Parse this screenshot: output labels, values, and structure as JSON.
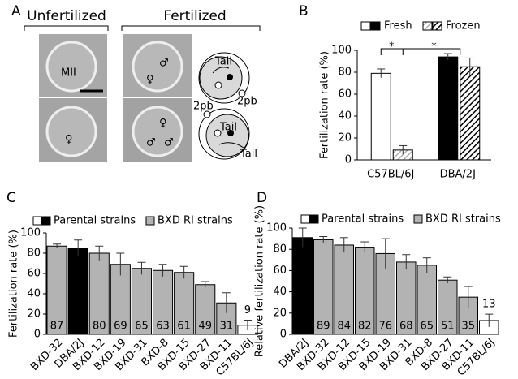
{
  "panel_a": {
    "label": "A",
    "groups": [
      "Unfertilized",
      "Fertilized"
    ],
    "image_labels": [
      "MII",
      "♀",
      "♂",
      "♀",
      "♀",
      "♂",
      "♂"
    ],
    "diagram_labels": [
      "Tail",
      "2pb",
      "2pb",
      "Tail",
      "Tail"
    ]
  },
  "chart_data": [
    {
      "panel": "B",
      "type": "bar",
      "ylabel": "Fertilization rate (%)",
      "categories": [
        "C57BL/6J",
        "DBA/2J"
      ],
      "series": [
        {
          "name": "Fresh",
          "colors": [
            "#ffffff",
            "#000000"
          ],
          "values": [
            79,
            94
          ],
          "errors": [
            4,
            3
          ]
        },
        {
          "name": "Frozen",
          "colors": [
            "#a0a0a0",
            "#000000"
          ],
          "hatch": true,
          "values": [
            9,
            85
          ],
          "errors": [
            4,
            8
          ]
        }
      ],
      "annotations": [
        "*",
        "*"
      ],
      "ylim": [
        0,
        100
      ],
      "yticks": [
        0,
        20,
        40,
        60,
        80,
        100
      ]
    },
    {
      "panel": "C",
      "type": "bar",
      "ylabel": "Fertilization rate (%)",
      "categories": [
        "BXD-32",
        "DBA/2J",
        "BXD-12",
        "BXD-19",
        "BXD-31",
        "BXD-8",
        "BXD-15",
        "BXD-27",
        "BXD-11",
        "C57BL/6J"
      ],
      "values": [
        87,
        85,
        80,
        69,
        65,
        63,
        61,
        49,
        31,
        9
      ],
      "errors": [
        2,
        8,
        7,
        11,
        6,
        6,
        6,
        3,
        10,
        5
      ],
      "colors": [
        "#b3b3b3",
        "#000000",
        "#b3b3b3",
        "#b3b3b3",
        "#b3b3b3",
        "#b3b3b3",
        "#b3b3b3",
        "#b3b3b3",
        "#b3b3b3",
        "#ffffff"
      ],
      "legend": [
        {
          "name": "Parental strains",
          "colors": [
            "#ffffff",
            "#000000"
          ]
        },
        {
          "name": "BXD RI strains",
          "colors": [
            "#b3b3b3"
          ]
        }
      ],
      "ylim": [
        0,
        100
      ],
      "yticks": [
        0,
        20,
        40,
        60,
        80,
        100
      ]
    },
    {
      "panel": "D",
      "type": "bar",
      "ylabel": "Relative fertilization rate (%)",
      "categories": [
        "DBA/2J",
        "BXD-32",
        "BXD-12",
        "BXD-15",
        "BXD-19",
        "BXD-31",
        "BXD-8",
        "BXD-27",
        "BXD-11",
        "C57BL/6J"
      ],
      "values": [
        91,
        89,
        84,
        82,
        76,
        68,
        65,
        51,
        35,
        13
      ],
      "errors": [
        9,
        3,
        7,
        5,
        14,
        7,
        7,
        3,
        10,
        6
      ],
      "colors": [
        "#000000",
        "#b3b3b3",
        "#b3b3b3",
        "#b3b3b3",
        "#b3b3b3",
        "#b3b3b3",
        "#b3b3b3",
        "#b3b3b3",
        "#b3b3b3",
        "#ffffff"
      ],
      "legend": [
        {
          "name": "Parental strains",
          "colors": [
            "#ffffff",
            "#000000"
          ]
        },
        {
          "name": "BXD RI strains",
          "colors": [
            "#b3b3b3"
          ]
        }
      ],
      "ylim": [
        0,
        100
      ],
      "yticks": [
        0,
        20,
        40,
        60,
        80,
        100
      ]
    }
  ]
}
